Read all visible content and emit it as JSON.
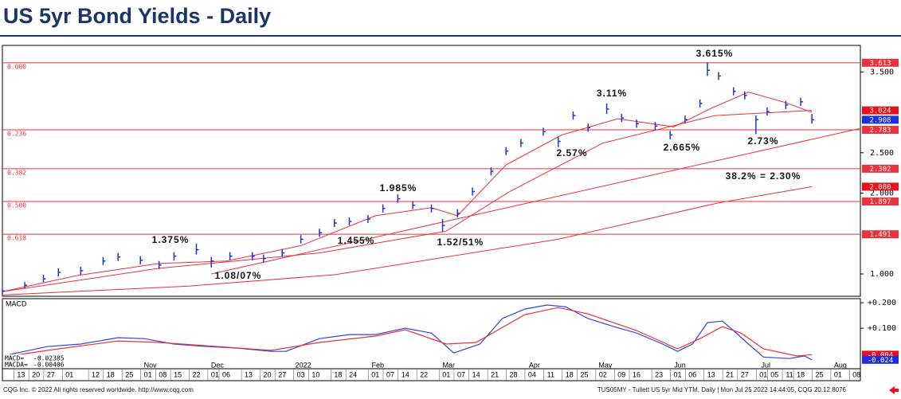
{
  "header": {
    "title": "US 5yr Bond Yields - Daily"
  },
  "chart_data": [
    {
      "type": "ohlc",
      "xlim": [
        0,
        230
      ],
      "ylim": [
        0.724,
        3.828
      ],
      "yticks": [
        {
          "value": 1,
          "label": "1.000"
        },
        {
          "value": 2,
          "label": "2.000"
        },
        {
          "value": 2.5,
          "label": "2.500"
        },
        {
          "value": 3.5,
          "label": "3.500"
        }
      ],
      "bar_color": "#2233cc",
      "x": [
        0,
        6,
        11,
        15,
        21,
        27,
        31,
        37,
        42,
        46,
        52,
        56,
        61,
        67,
        70,
        75,
        80,
        85,
        89,
        93,
        98,
        102,
        106,
        110,
        115,
        118,
        122,
        126,
        131,
        135,
        139,
        145,
        149,
        153,
        157,
        162,
        166,
        170,
        175,
        179,
        183,
        187,
        189,
        192,
        196,
        199,
        202,
        205,
        210,
        214,
        217
      ],
      "high": [
        0.82,
        0.9,
        0.99,
        1.07,
        1.09,
        1.21,
        1.26,
        1.22,
        1.16,
        1.27,
        1.375,
        1.21,
        1.27,
        1.27,
        1.24,
        1.31,
        1.48,
        1.56,
        1.68,
        1.7,
        1.73,
        1.86,
        1.985,
        1.9,
        1.86,
        1.68,
        1.8,
        2.07,
        2.32,
        2.57,
        2.67,
        2.81,
        2.7,
        3.01,
        2.86,
        3.11,
        2.98,
        2.91,
        2.88,
        2.77,
        2.96,
        3.16,
        3.615,
        3.5,
        3.31,
        3.26,
        2.96,
        3.06,
        3.14,
        3.18,
        2.98
      ],
      "low": [
        0.75,
        0.82,
        0.9,
        0.97,
        0.99,
        1.11,
        1.16,
        1.12,
        1.06,
        1.17,
        1.24,
        1.08,
        1.17,
        1.17,
        1.14,
        1.21,
        1.38,
        1.46,
        1.58,
        1.6,
        1.63,
        1.76,
        1.88,
        1.8,
        1.76,
        1.52,
        1.7,
        1.97,
        2.22,
        2.47,
        2.57,
        2.71,
        2.57,
        2.91,
        2.76,
        2.98,
        2.88,
        2.81,
        2.78,
        2.665,
        2.86,
        3.06,
        3.45,
        3.4,
        3.21,
        3.16,
        2.73,
        2.96,
        3.04,
        3.08,
        2.86
      ],
      "close": [
        0.79,
        0.86,
        0.94,
        1.02,
        1.04,
        1.16,
        1.21,
        1.17,
        1.11,
        1.22,
        1.3,
        1.16,
        1.22,
        1.22,
        1.19,
        1.26,
        1.43,
        1.51,
        1.63,
        1.65,
        1.68,
        1.81,
        1.93,
        1.85,
        1.81,
        1.6,
        1.75,
        2.02,
        2.27,
        2.52,
        2.62,
        2.76,
        2.64,
        2.96,
        2.81,
        3.04,
        2.93,
        2.86,
        2.83,
        2.72,
        2.91,
        3.11,
        3.52,
        3.45,
        3.26,
        3.21,
        2.91,
        3.01,
        3.09,
        3.13,
        2.908
      ],
      "lines": [
        {
          "color": "#e8323c",
          "x": [
            0,
            20,
            42,
            60,
            80,
            100,
            115,
            122,
            135,
            150,
            165,
            180,
            190,
            200,
            210,
            217
          ],
          "values": [
            0.78,
            0.98,
            1.13,
            1.16,
            1.35,
            1.72,
            1.82,
            1.72,
            2.35,
            2.72,
            2.92,
            2.82,
            3.05,
            3.25,
            3.12,
            3.0
          ]
        },
        {
          "color": "#e8323c",
          "x": [
            0,
            42,
            85,
            119,
            136,
            161,
            191,
            217
          ],
          "values": [
            0.78,
            1.07,
            1.26,
            1.53,
            2.02,
            2.62,
            2.96,
            3.024
          ]
        },
        {
          "color": "#e8323c",
          "x": [
            56,
            230
          ],
          "values": [
            1.0,
            2.8
          ]
        },
        {
          "color": "#e8323c",
          "x": [
            0,
            50,
            89,
            149,
            192,
            217
          ],
          "values": [
            0.74,
            0.85,
            0.99,
            1.43,
            1.88,
            2.08
          ]
        }
      ],
      "fib_color": "#e8323c",
      "fib_levels": [
        {
          "label": "0.000",
          "value": 3.613
        },
        {
          "label": "0.236",
          "value": 2.783
        },
        {
          "label": "0.382",
          "value": 2.302
        },
        {
          "label": "0.500",
          "value": 1.897
        },
        {
          "label": "0.618",
          "value": 1.491
        }
      ],
      "markers": [
        {
          "value": 3.024,
          "color": "#e8111b"
        },
        {
          "value": 2.908,
          "color": "#1b2fe0"
        },
        {
          "value": 2.08,
          "label": "2.080",
          "color": "#e8111b"
        }
      ],
      "annotations": [
        "3.615%",
        "3.11%",
        "2.57%",
        "2.665%",
        "2.73%",
        "38.2% = 2.30%",
        "1.985%",
        "1.52/51%",
        "1.455%",
        "1.375%",
        "1.08/07%"
      ]
    },
    {
      "type": "line",
      "title": "MACD",
      "xlim": [
        0,
        230
      ],
      "ylim": [
        -0.059,
        0.216
      ],
      "yticks": [
        {
          "value": 0.1,
          "label": "+0.100"
        },
        {
          "value": 0.2,
          "label": "+0.200"
        }
      ],
      "series": [
        {
          "name": "MACD=",
          "color": "#3344dd",
          "last": -0.02385,
          "x": [
            2,
            12,
            21,
            31,
            38,
            46,
            55,
            63,
            72,
            76,
            85,
            93,
            100,
            108,
            115,
            121,
            128,
            134,
            140,
            146,
            151,
            157,
            164,
            170,
            177,
            181,
            185,
            189,
            193,
            196,
            200,
            204,
            211,
            215,
            217
          ],
          "values": [
            -0.003,
            0.028,
            0.038,
            0.063,
            0.059,
            0.038,
            0.028,
            0.022,
            0.009,
            0.009,
            0.059,
            0.075,
            0.075,
            0.1,
            0.081,
            0.003,
            0.038,
            0.138,
            0.175,
            0.191,
            0.184,
            0.138,
            0.106,
            0.081,
            0.038,
            0.009,
            0.038,
            0.122,
            0.128,
            0.091,
            0.038,
            -0.013,
            -0.019,
            -0.009,
            -0.024
          ]
        },
        {
          "name": "MACDA=",
          "color": "#e8323c",
          "last": -0.00406,
          "x": [
            2,
            12,
            31,
            42,
            55,
            72,
            85,
            100,
            108,
            119,
            127,
            140,
            149,
            157,
            170,
            181,
            187,
            193,
            198,
            204,
            213,
            217
          ],
          "values": [
            -0.009,
            0.013,
            0.05,
            0.044,
            0.031,
            0.013,
            0.044,
            0.069,
            0.094,
            0.038,
            0.044,
            0.153,
            0.181,
            0.156,
            0.091,
            0.019,
            0.059,
            0.106,
            0.081,
            0.019,
            -0.009,
            -0.004
          ]
        }
      ],
      "markers": [
        {
          "value": -0.004,
          "color": "#e8111b"
        },
        {
          "value": -0.024,
          "color": "#1b2fe0"
        }
      ],
      "xticks": [
        {
          "value": 5,
          "label": "13"
        },
        {
          "value": 9,
          "label": "20"
        },
        {
          "value": 13,
          "label": "27"
        },
        {
          "value": 18,
          "label": "01"
        },
        {
          "value": 25,
          "label": "12"
        },
        {
          "value": 29,
          "label": "18"
        },
        {
          "value": 34,
          "label": "25"
        },
        {
          "value": 39,
          "label": "01"
        },
        {
          "value": 43,
          "label": "08"
        },
        {
          "value": 47,
          "label": "15"
        },
        {
          "value": 52,
          "label": "22"
        },
        {
          "value": 57,
          "label": "01"
        },
        {
          "value": 60,
          "label": "06"
        },
        {
          "value": 66,
          "label": "13"
        },
        {
          "value": 71,
          "label": "20"
        },
        {
          "value": 75,
          "label": "27"
        },
        {
          "value": 80,
          "label": "03"
        },
        {
          "value": 84,
          "label": "10"
        },
        {
          "value": 90,
          "label": "18"
        },
        {
          "value": 94,
          "label": "24"
        },
        {
          "value": 100,
          "label": "01"
        },
        {
          "value": 104,
          "label": "07"
        },
        {
          "value": 108,
          "label": "14"
        },
        {
          "value": 113,
          "label": "22"
        },
        {
          "value": 119,
          "label": "01"
        },
        {
          "value": 123,
          "label": "07"
        },
        {
          "value": 127,
          "label": "14"
        },
        {
          "value": 132,
          "label": "21"
        },
        {
          "value": 137,
          "label": "28"
        },
        {
          "value": 142,
          "label": "04"
        },
        {
          "value": 147,
          "label": "11"
        },
        {
          "value": 152,
          "label": "18"
        },
        {
          "value": 156,
          "label": "25"
        },
        {
          "value": 161,
          "label": "02"
        },
        {
          "value": 166,
          "label": "09"
        },
        {
          "value": 170,
          "label": "16"
        },
        {
          "value": 176,
          "label": "23"
        },
        {
          "value": 181,
          "label": "01"
        },
        {
          "value": 185,
          "label": "06"
        },
        {
          "value": 190,
          "label": "13"
        },
        {
          "value": 195,
          "label": "21"
        },
        {
          "value": 199,
          "label": "27"
        },
        {
          "value": 204,
          "label": "01"
        },
        {
          "value": 207,
          "label": "05"
        },
        {
          "value": 211,
          "label": "11"
        },
        {
          "value": 214,
          "label": "18"
        },
        {
          "value": 219,
          "label": "25"
        },
        {
          "value": 224,
          "label": "01"
        },
        {
          "value": 229,
          "label": "08"
        }
      ],
      "month_labels": [
        {
          "value": 39,
          "label": "Nov"
        },
        {
          "value": 57,
          "label": "Dec"
        },
        {
          "value": 80,
          "label": "2022"
        },
        {
          "value": 100,
          "label": "Feb"
        },
        {
          "value": 119,
          "label": "Mar"
        },
        {
          "value": 142,
          "label": "Apr"
        },
        {
          "value": 161,
          "label": "May"
        },
        {
          "value": 181,
          "label": "Jun"
        },
        {
          "value": 204,
          "label": "Jul"
        },
        {
          "value": 224,
          "label": "Aug"
        }
      ]
    }
  ],
  "footer": {
    "left": "CQG Inc. © 2022 All rights reserved worldwide. http://www.cqg.com",
    "right": "TUS05MY - Tullett US 5yr Mid YTM, Daily | Mon Jul 25 2022 14:44:05, CQG 20.12.8076"
  }
}
